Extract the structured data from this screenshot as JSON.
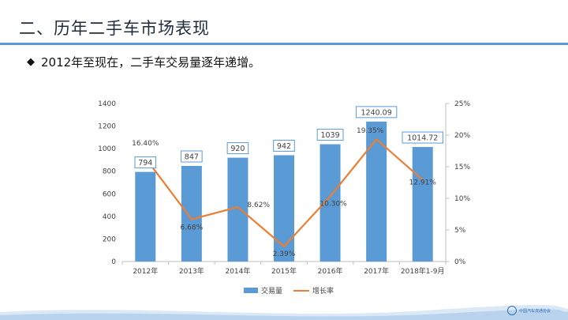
{
  "slide": {
    "title": "二、历年二手车市场表现",
    "bullet_icon": "diamond-bullet-icon",
    "bullet_text": "2012年至现在，二手车交易量逐年递增。",
    "logo_text": "中国汽车流通协会"
  },
  "colors": {
    "accent": "#5b9bd5",
    "bar": "#5b9bd5",
    "line": "#ed7d31",
    "title": "#1f2d3a"
  },
  "chart_data": {
    "type": "bar+line",
    "categories": [
      "2012年",
      "2013年",
      "2014年",
      "2015年",
      "2016年",
      "2017年",
      "2018年1-9月"
    ],
    "series": [
      {
        "name": "交易量",
        "type": "bar",
        "axis": "left",
        "values": [
          794,
          847,
          920,
          942,
          1039,
          1240.09,
          1014.72
        ],
        "labels": [
          "794",
          "847",
          "920",
          "942",
          "1039",
          "1240.09",
          "1014.72"
        ]
      },
      {
        "name": "增长率",
        "type": "line",
        "axis": "right",
        "values": [
          16.4,
          6.68,
          8.62,
          2.39,
          10.3,
          19.35,
          12.91
        ],
        "labels": [
          "16.40%",
          "6.68%",
          "8.62%",
          "2.39%",
          "10.30%",
          "19.35%",
          "12.91%"
        ]
      }
    ],
    "y_left": {
      "min": 0,
      "max": 1400,
      "ticks": [
        "0",
        "200",
        "400",
        "600",
        "800",
        "1000",
        "1200",
        "1400"
      ]
    },
    "y_right": {
      "min": 0,
      "max": 25,
      "ticks": [
        "0%",
        "5%",
        "10%",
        "15%",
        "20%",
        "25%"
      ]
    },
    "legend": {
      "position": "bottom",
      "items": [
        "交易量",
        "增长率"
      ]
    },
    "grid": false
  }
}
